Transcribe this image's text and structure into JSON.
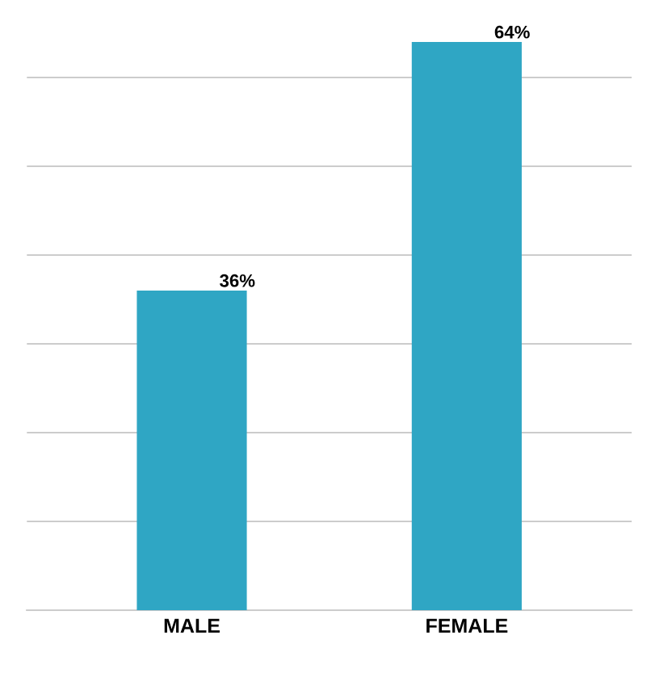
{
  "chart_data": {
    "type": "bar",
    "categories": [
      "MALE",
      "FEMALE"
    ],
    "values": [
      36,
      64
    ],
    "value_labels": [
      "36%",
      "64%"
    ],
    "color": "#2fa6c4",
    "grid": "y",
    "tick_labels": "x"
  }
}
